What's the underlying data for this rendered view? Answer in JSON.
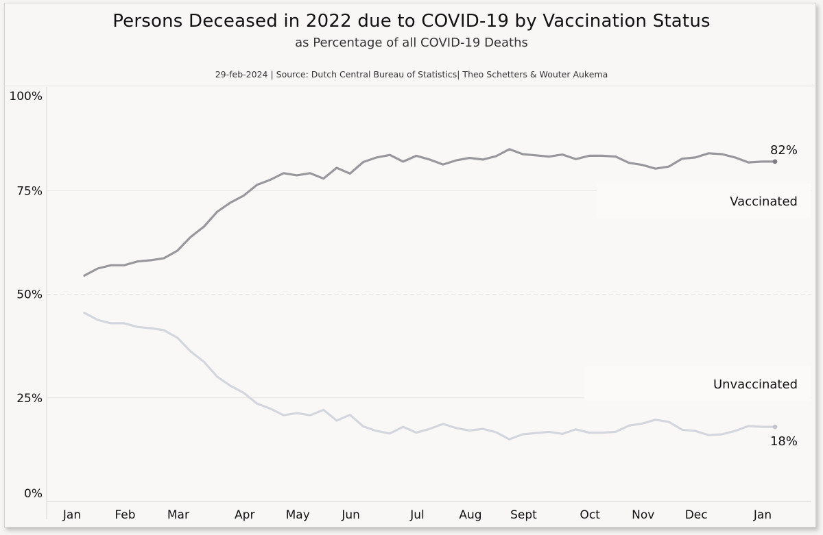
{
  "chart_data": {
    "type": "line",
    "title": "Persons Deceased in 2022 due to COVID-19 by Vaccination Status",
    "subtitle": "as Percentage of all COVID-19 Deaths",
    "source": "29-feb-2024 | Source: Dutch Central Bureau of Statistics| Theo Schetters & Wouter Aukema",
    "x_ticks": [
      "Jan",
      "Feb",
      "Mar",
      "Apr",
      "May",
      "Jun",
      "Jul",
      "Aug",
      "Sept",
      "Oct",
      "Nov",
      "Dec",
      "Jan"
    ],
    "y_ticks": [
      "0%",
      "25%",
      "50%",
      "75%",
      "100%"
    ],
    "ylim": [
      0,
      100
    ],
    "week_ticks": [
      1,
      5,
      9,
      14,
      18,
      22,
      27,
      31,
      35,
      40,
      44,
      48,
      53
    ],
    "x": [
      1,
      2,
      3,
      4,
      5,
      6,
      7,
      8,
      9,
      10,
      11,
      12,
      13,
      14,
      15,
      16,
      17,
      18,
      19,
      20,
      21,
      22,
      23,
      24,
      25,
      26,
      27,
      28,
      29,
      30,
      31,
      32,
      33,
      34,
      35,
      36,
      37,
      38,
      39,
      40,
      41,
      42,
      43,
      44,
      45,
      46,
      47,
      48,
      49,
      50,
      51,
      52,
      53
    ],
    "series": [
      {
        "name": "Vaccinated",
        "color": "#98979c",
        "end_label": "82%",
        "values": [
          54.5,
          56.2,
          57.0,
          57.0,
          57.9,
          58.2,
          58.7,
          60.5,
          63.8,
          66.3,
          69.9,
          72.1,
          73.8,
          76.4,
          77.6,
          79.2,
          78.7,
          79.2,
          77.9,
          80.5,
          79.1,
          81.9,
          83.0,
          83.6,
          82.0,
          83.4,
          82.5,
          81.3,
          82.3,
          82.9,
          82.5,
          83.3,
          85.0,
          83.8,
          83.5,
          83.2,
          83.7,
          82.6,
          83.4,
          83.4,
          83.2,
          81.7,
          81.2,
          80.3,
          80.8,
          82.7,
          83.0,
          84.0,
          83.8,
          83.0,
          81.8,
          82.0,
          82.0
        ]
      },
      {
        "name": "Unvaccinated",
        "color": "#d4d6de",
        "end_label": "18%",
        "values": [
          45.5,
          43.8,
          43.0,
          43.0,
          42.1,
          41.8,
          41.3,
          39.5,
          36.2,
          33.7,
          30.1,
          27.9,
          26.2,
          23.6,
          22.4,
          20.8,
          21.3,
          20.8,
          22.1,
          19.5,
          20.9,
          18.1,
          17.0,
          16.4,
          18.0,
          16.6,
          17.5,
          18.7,
          17.7,
          17.1,
          17.5,
          16.7,
          15.0,
          16.2,
          16.5,
          16.8,
          16.3,
          17.4,
          16.6,
          16.6,
          16.8,
          18.3,
          18.8,
          19.7,
          19.2,
          17.3,
          17.0,
          16.0,
          16.2,
          17.0,
          18.2,
          18.0,
          18.0
        ]
      }
    ],
    "grid": true,
    "legend": "inline-right"
  }
}
